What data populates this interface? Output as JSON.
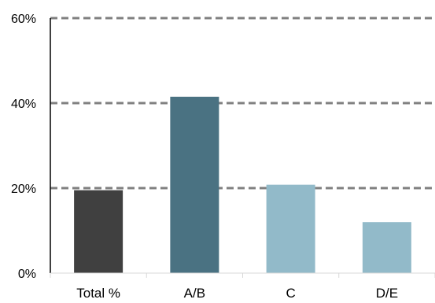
{
  "chart_data": {
    "type": "bar",
    "title": "",
    "xlabel": "",
    "ylabel": "",
    "categories": [
      "Total %",
      "A/B",
      "C",
      "D/E"
    ],
    "values": [
      19.5,
      41.5,
      20.8,
      12.0
    ],
    "bar_colors": [
      "#404040",
      "#4a7282",
      "#92bac9",
      "#92bac9"
    ],
    "ylim": [
      0,
      60
    ],
    "y_ticks": [
      0,
      20,
      40,
      60
    ],
    "y_tick_labels": [
      "0%",
      "20%",
      "40%",
      "60%"
    ],
    "grid": {
      "style": "dashed",
      "color": "#808080",
      "lines_at": [
        20,
        40,
        60
      ]
    },
    "legend": "none"
  }
}
